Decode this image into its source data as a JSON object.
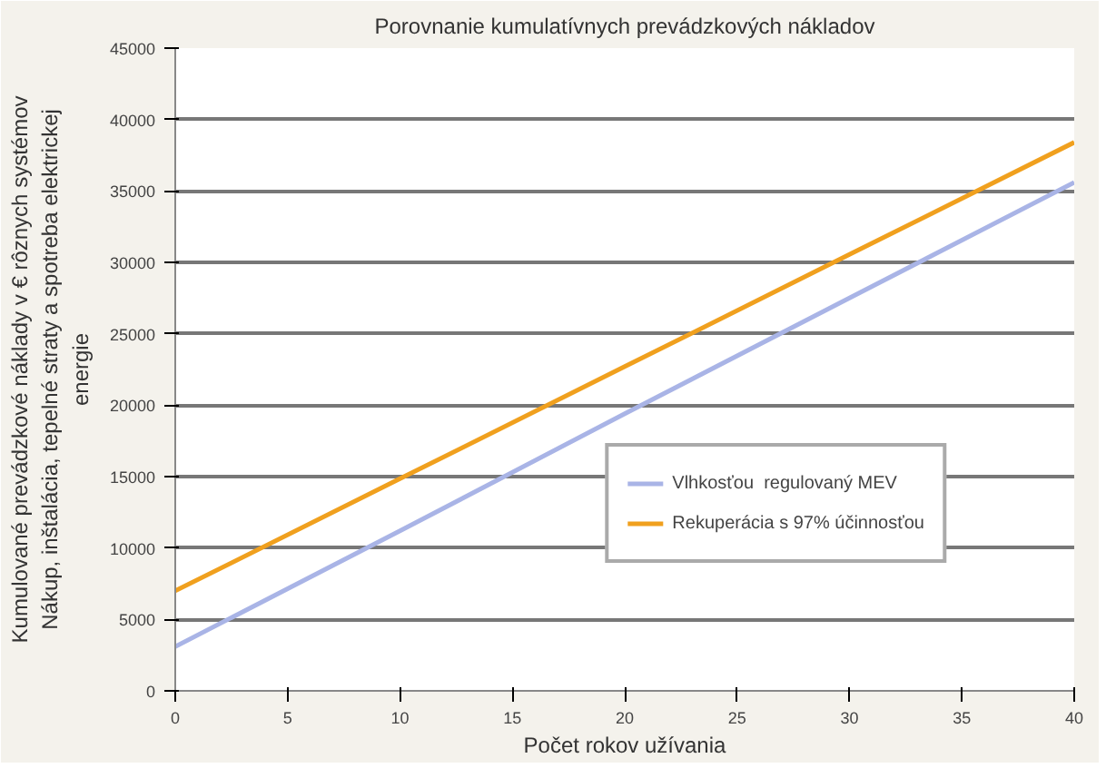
{
  "chart_data": {
    "type": "line",
    "title": "Porovnanie kumulatívnych prevádzkových nákladov",
    "xlabel": "Počet rokov užívania",
    "ylabel": "Kumulované prevádzkové náklady v € rôznych systémov\nNákup, inštalácia, tepelné straty a spotreba elektrickej\nenergie",
    "x": [
      0,
      10,
      20,
      30,
      40
    ],
    "series": [
      {
        "name": "Vlhkosťou  regulovaný MEV",
        "color": "#a9b4e6",
        "values": [
          3100,
          11200,
          19400,
          27500,
          35600
        ]
      },
      {
        "name": "Rekuperácia s 97% účinnosťou",
        "color": "#f0a01e",
        "values": [
          7000,
          14850,
          22700,
          30550,
          38400
        ]
      }
    ],
    "xlim": [
      0,
      40
    ],
    "ylim": [
      0,
      45000
    ],
    "xticks": [
      0,
      5,
      10,
      15,
      20,
      25,
      30,
      35,
      40
    ],
    "yticks": [
      0,
      5000,
      10000,
      15000,
      20000,
      25000,
      30000,
      35000,
      40000,
      45000
    ],
    "grid": "y",
    "legend": "bottom right",
    "marker": "none",
    "line_style": "solid"
  }
}
